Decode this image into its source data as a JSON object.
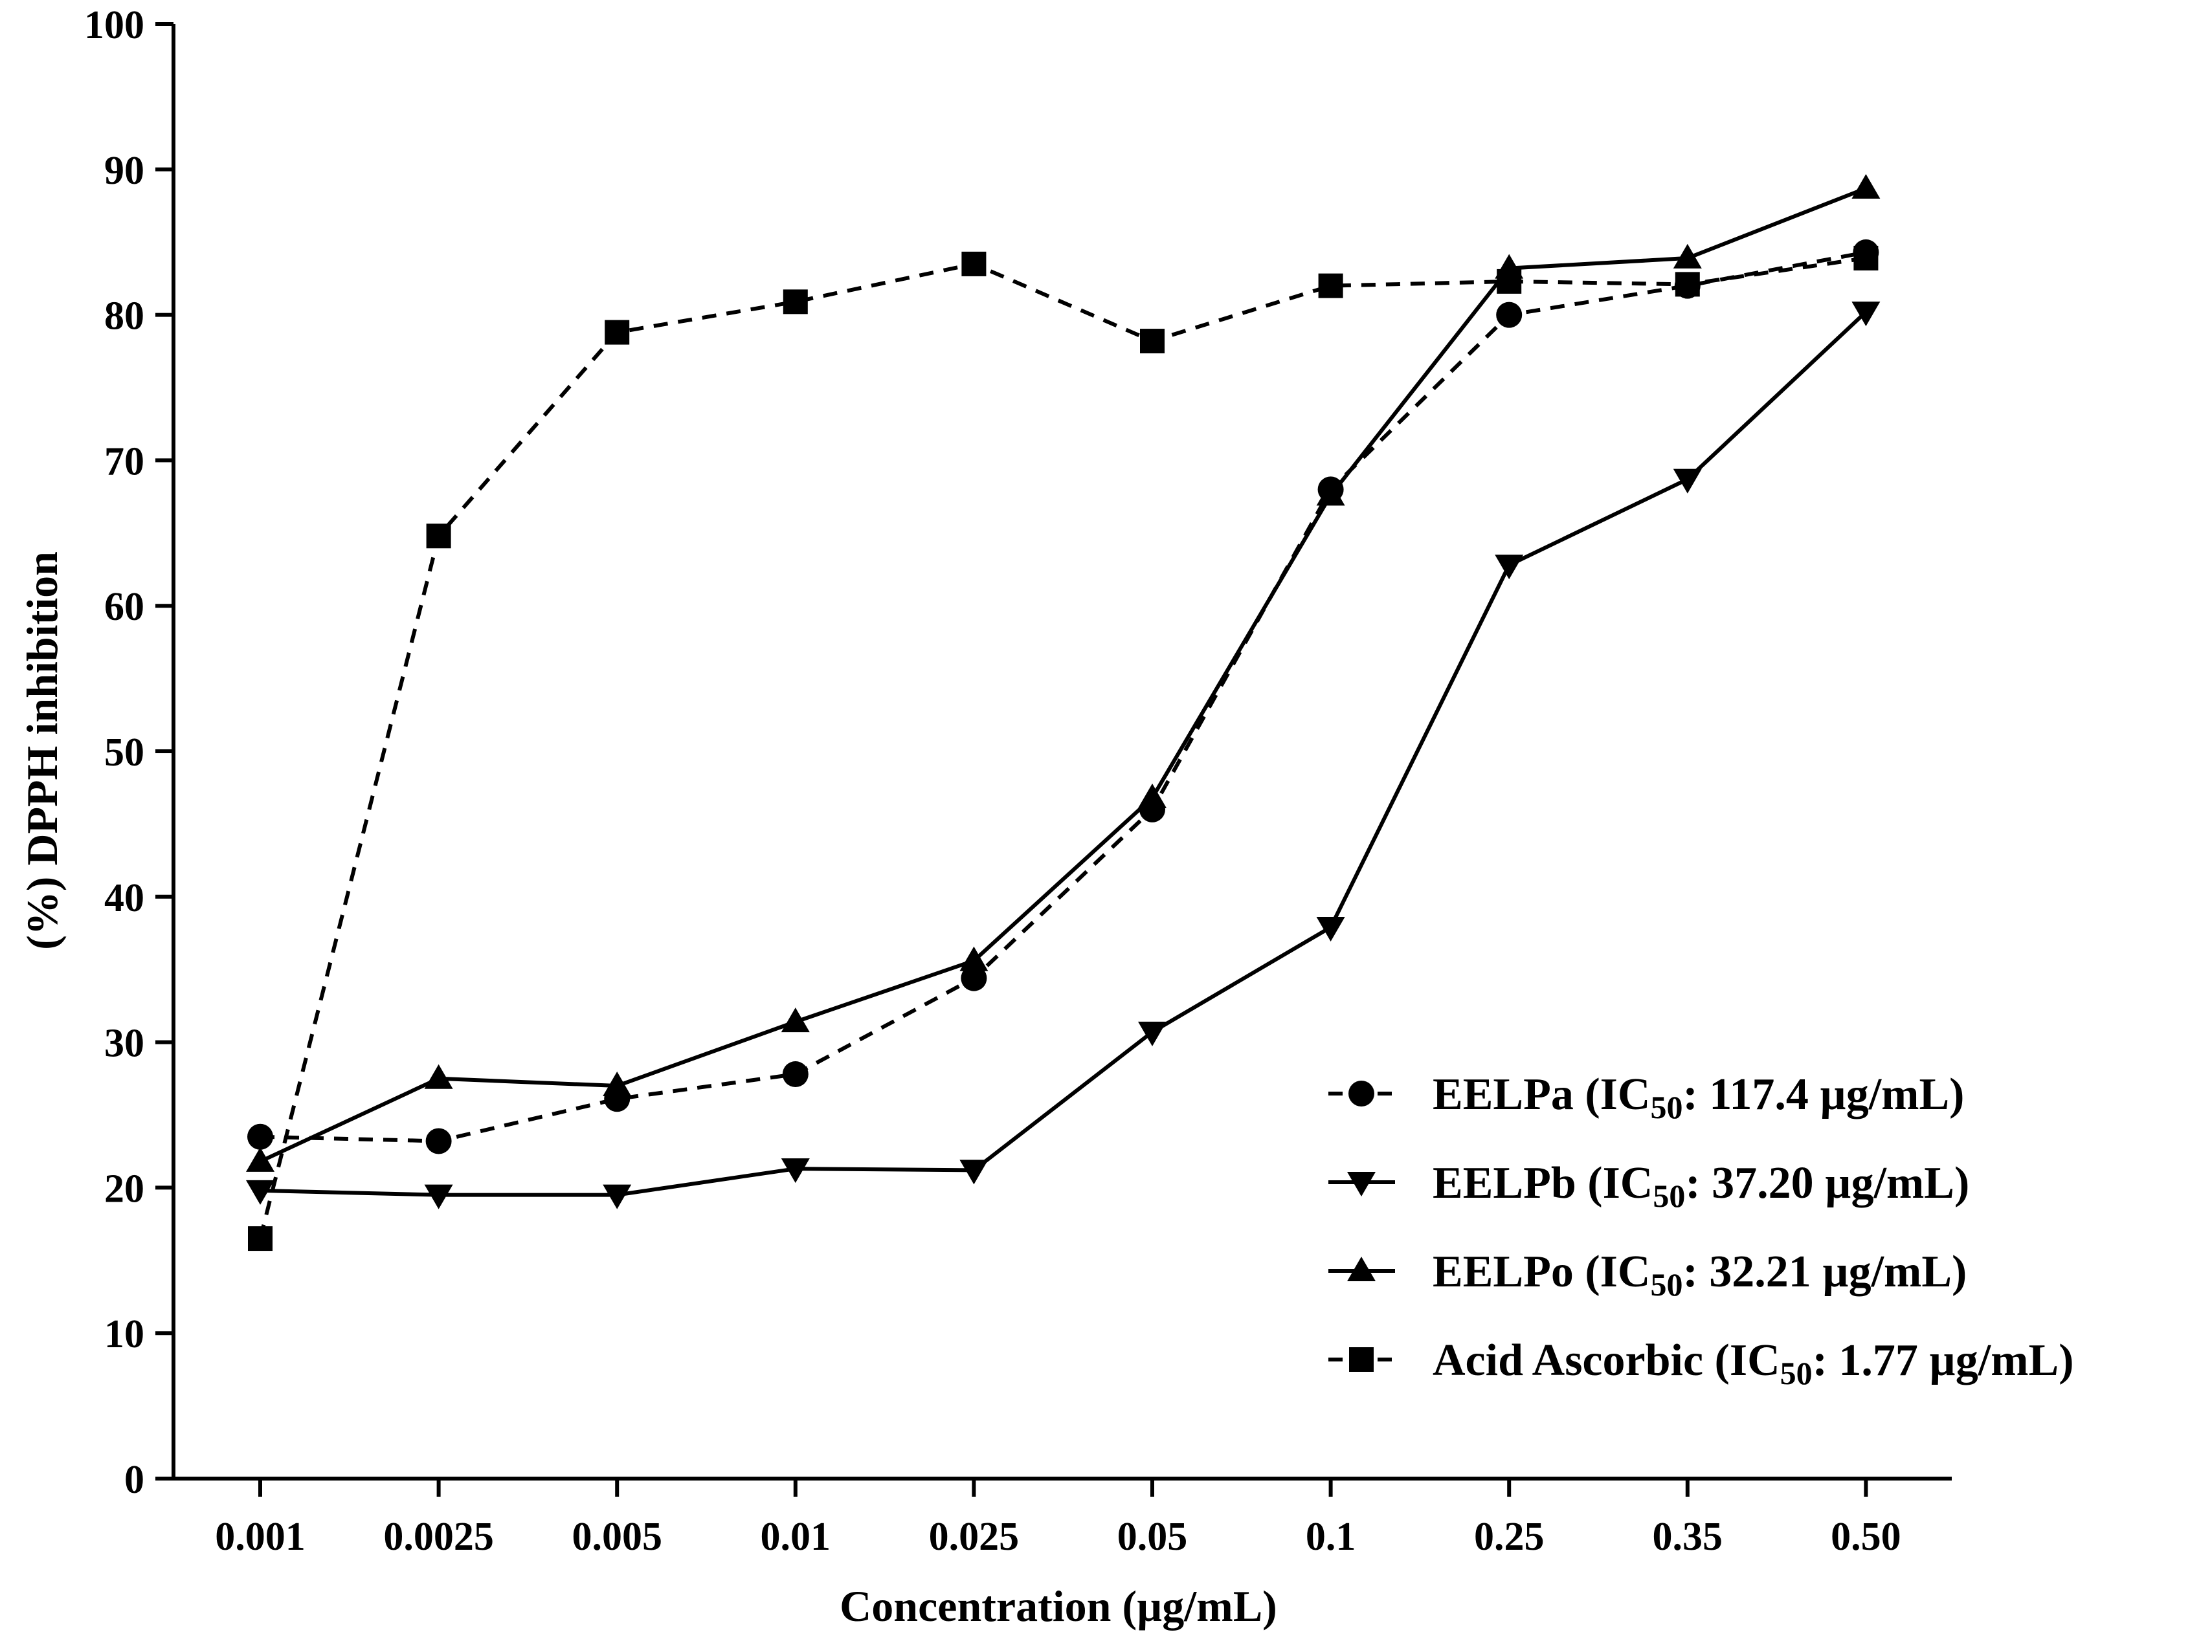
{
  "chart_data": {
    "type": "line",
    "title": "",
    "xlabel": "Concentration (µg/mL)",
    "ylabel": "(%) DPPH inhibition",
    "categories": [
      "0.001",
      "0.0025",
      "0.005",
      "0.01",
      "0.025",
      "0.05",
      "0.1",
      "0.25",
      "0.35",
      "0.50"
    ],
    "ylim": [
      0,
      100
    ],
    "yticks": [
      "0",
      "10",
      "20",
      "30",
      "40",
      "50",
      "60",
      "70",
      "80",
      "90",
      "100"
    ],
    "grid": false,
    "legend_position": "bottom-right",
    "series": [
      {
        "name": "EELPa",
        "ic50_value": "117.4 µg/mL",
        "marker": "circle",
        "line_style": "dashed",
        "values": [
          23.5,
          23.2,
          26.1,
          27.8,
          34.4,
          46.0,
          68.0,
          80.0,
          82.0,
          84.3
        ]
      },
      {
        "name": "EELPb",
        "ic50_value": "37.20 µg/mL",
        "marker": "triangle-down",
        "line_style": "solid",
        "values": [
          19.8,
          19.5,
          19.5,
          21.3,
          21.2,
          30.7,
          37.9,
          62.8,
          68.7,
          80.2
        ]
      },
      {
        "name": "EELPo",
        "ic50_value": "32.21 µg/mL",
        "marker": "triangle-up",
        "line_style": "solid",
        "values": [
          21.8,
          27.5,
          27.0,
          31.4,
          35.6,
          46.8,
          67.6,
          83.2,
          83.9,
          88.7
        ]
      },
      {
        "name": "Acid Ascorbic",
        "ic50_value": "1.77 µg/mL",
        "marker": "square",
        "line_style": "dashed",
        "values": [
          16.5,
          64.8,
          78.8,
          80.9,
          83.5,
          78.2,
          82.0,
          82.3,
          82.1,
          83.9
        ]
      }
    ],
    "legend_ic50_prefix": "IC",
    "legend_ic50_subscript": "50",
    "colors": {
      "line": "#000000",
      "background": "#ffffff"
    }
  }
}
